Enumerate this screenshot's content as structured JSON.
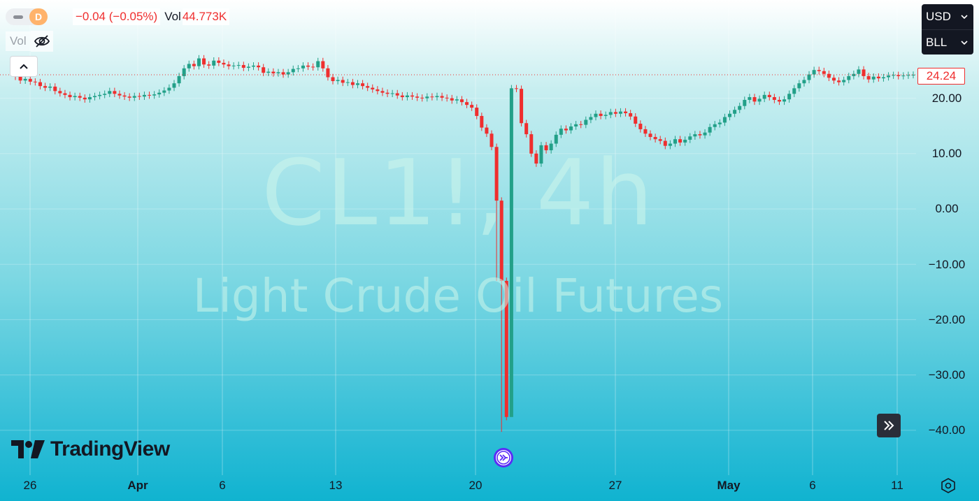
{
  "header": {
    "interval_badge": "D",
    "change": "−0.04 (−0.05%)",
    "volume_label": "Vol",
    "volume_value": "44.773K"
  },
  "volume_indicator": {
    "label": "Vol"
  },
  "scale": {
    "currency": "USD",
    "unit": "BLL"
  },
  "watermark": {
    "symbol": "CL1!, 4h",
    "description": "Light Crude Oil Futures"
  },
  "last_price": "24.24",
  "y_axis_ticks": [
    "20.00",
    "10.00",
    "0.00",
    "−10.00",
    "−20.00",
    "−30.00",
    "−40.00"
  ],
  "x_axis_ticks": [
    "26",
    "Apr",
    "6",
    "13",
    "20",
    "27",
    "May",
    "6",
    "11"
  ],
  "logo": {
    "text": "TradingView"
  },
  "icons": {
    "hide": "eye-off-icon",
    "collapse": "chevron-up-icon",
    "scroll": "double-chevron-right-icon",
    "event": "forward-circle-icon",
    "settings": "hexagon-settings-icon",
    "dropdown": "chevron-down-icon"
  },
  "colors": {
    "up": "#22a088",
    "down": "#ef2e2e",
    "accent": "#5b2cf6"
  },
  "chart_data": {
    "type": "candlestick",
    "ylim": [
      -40,
      27
    ],
    "y_ticks": [
      20,
      10,
      0,
      -10,
      -20,
      -30,
      -40
    ],
    "x_ticks": [
      "26",
      "Apr",
      "6",
      "13",
      "20",
      "27",
      "May",
      "6",
      "11"
    ],
    "closes": [
      23.9,
      23.2,
      23.5,
      23.0,
      22.9,
      22.2,
      21.9,
      22.1,
      21.3,
      20.9,
      20.6,
      20.2,
      20.4,
      20.1,
      19.8,
      20.2,
      20.4,
      20.6,
      20.8,
      21.3,
      20.8,
      20.5,
      20.3,
      20.1,
      20.4,
      20.3,
      20.6,
      20.5,
      20.7,
      21.0,
      21.4,
      21.9,
      22.7,
      24.0,
      25.4,
      26.2,
      25.8,
      27.2,
      26.1,
      25.9,
      26.8,
      26.4,
      26.1,
      25.8,
      25.9,
      26.0,
      25.5,
      25.7,
      25.9,
      25.6,
      24.6,
      24.8,
      24.5,
      24.7,
      24.3,
      24.7,
      25.3,
      25.4,
      25.9,
      25.7,
      25.6,
      26.7,
      25.4,
      23.8,
      23.1,
      23.3,
      22.8,
      22.9,
      22.4,
      22.7,
      22.2,
      21.9,
      21.6,
      21.3,
      21.0,
      20.8,
      20.9,
      20.5,
      20.2,
      20.5,
      20.3,
      20.1,
      20.0,
      20.3,
      20.2,
      20.4,
      20.1,
      20.0,
      19.6,
      19.8,
      19.3,
      18.8,
      18.3,
      16.8,
      14.7,
      13.6,
      11.2,
      1.5,
      -13.0,
      -37.6,
      21.8,
      21.7,
      15.5,
      13.5,
      10.0,
      8.2,
      11.5,
      10.6,
      11.8,
      13.4,
      14.5,
      14.2,
      14.9,
      15.3,
      15.2,
      16.1,
      16.6,
      17.2,
      16.8,
      17.0,
      17.5,
      17.2,
      17.6,
      17.3,
      16.7,
      15.4,
      14.4,
      13.6,
      13.0,
      12.6,
      12.3,
      11.4,
      11.8,
      12.6,
      12.0,
      12.5,
      13.1,
      13.5,
      13.3,
      13.8,
      14.8,
      15.3,
      15.6,
      16.6,
      17.2,
      17.9,
      18.6,
      19.7,
      20.2,
      19.4,
      19.9,
      20.6,
      20.2,
      19.7,
      19.4,
      19.8,
      20.8,
      21.8,
      22.7,
      23.3,
      24.3,
      25.1,
      24.9,
      24.4,
      23.7,
      23.2,
      22.9,
      23.3,
      24.0,
      24.4,
      25.2,
      24.0,
      23.4,
      23.9,
      23.6,
      23.8,
      24.1,
      24.2,
      24.0,
      24.1,
      24.2,
      24.24
    ],
    "events": [
      {
        "index": 98,
        "type": "low",
        "value": -40.3
      },
      {
        "index": 97,
        "type": "low",
        "value": -13.0
      },
      {
        "index": 100,
        "type": "low",
        "value": 6.5
      }
    ]
  }
}
